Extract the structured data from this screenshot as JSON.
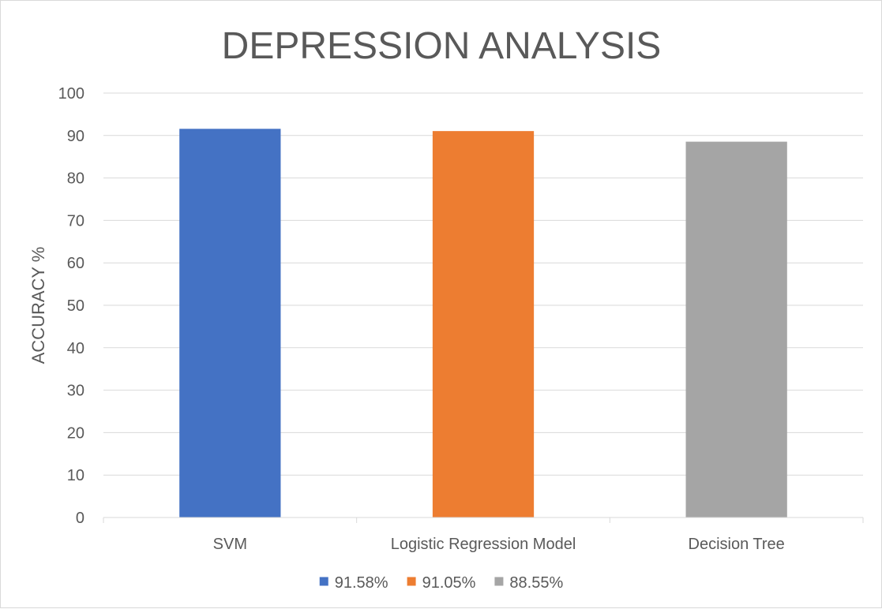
{
  "chart_data": {
    "type": "bar",
    "title": "DEPRESSION ANALYSIS",
    "xlabel": "",
    "ylabel": "ACCURACY %",
    "ylim": [
      0,
      100
    ],
    "yticks": [
      0,
      10,
      20,
      30,
      40,
      50,
      60,
      70,
      80,
      90,
      100
    ],
    "grid": true,
    "legend_position": "bottom",
    "categories": [
      "SVM",
      "Logistic Regression Model",
      "Decision Tree"
    ],
    "series": [
      {
        "name": "91.58%",
        "values": [
          91.58,
          null,
          null
        ],
        "color": "#4472c4"
      },
      {
        "name": "91.05%",
        "values": [
          null,
          91.05,
          null
        ],
        "color": "#ed7d31"
      },
      {
        "name": "88.55%",
        "values": [
          null,
          null,
          88.55
        ],
        "color": "#a5a5a5"
      }
    ]
  }
}
